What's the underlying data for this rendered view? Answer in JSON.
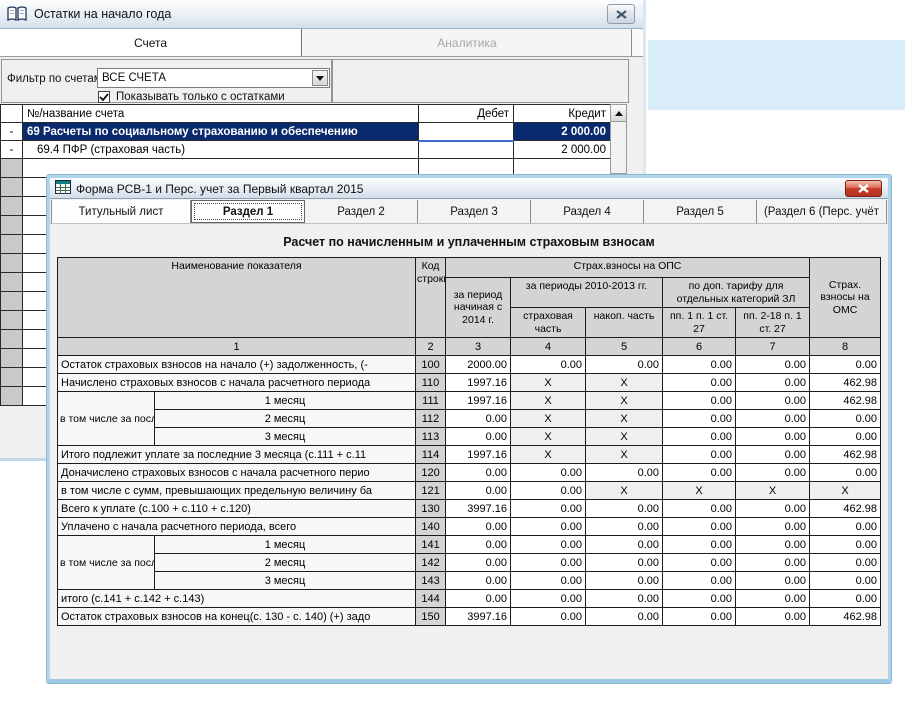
{
  "colors": {
    "selection_navy": "#0a2a6e",
    "window_border_blue": "#aed7ef",
    "close_button_red": "#c53a28",
    "band_blue": "#d9edf8",
    "table_header_gray": "#d4d4d4"
  },
  "window_balances": {
    "title": "Остатки на начало года",
    "icon": "open-book-icon",
    "close": "close-icon",
    "tabs": [
      {
        "label": "Счета",
        "active": true
      },
      {
        "label": "Аналитика",
        "active": false
      }
    ],
    "filter_label": "Фильтр по счетам",
    "filter_value": "ВСЕ СЧЕТА",
    "checkbox_label": "Показывать только с остатками",
    "checkbox_checked": true,
    "table": {
      "columns": [
        "№/название счета",
        "Дебет",
        "Кредит"
      ],
      "rows": [
        {
          "expander": "-",
          "name": "69 Расчеты по социальному страхованию и обеспечению",
          "debit": "",
          "credit": "2 000.00",
          "selected": true,
          "indent": false
        },
        {
          "expander": "-",
          "name": "69.4  ПФР (страховая часть)",
          "debit": "",
          "credit": "2 000.00",
          "selected": false,
          "indent": true
        }
      ],
      "empty_row_count": 13
    }
  },
  "window_rsv": {
    "title": "Форма РСВ-1 и Перс. учет за Первый квартал 2015",
    "icon": "spreadsheet-icon",
    "close": "close-icon",
    "tabs": [
      {
        "label": "Титульный лист",
        "active": false
      },
      {
        "label": "Раздел 1",
        "active": true
      },
      {
        "label": "Раздел 2",
        "active": false
      },
      {
        "label": "Раздел 3",
        "active": false
      },
      {
        "label": "Раздел 4",
        "active": false
      },
      {
        "label": "Раздел 5",
        "active": false
      },
      {
        "label": "(Раздел 6 (Перс. учёт",
        "active": false
      }
    ],
    "form_title": "Расчет по начисленным и уплаченным страховым взносам",
    "table": {
      "header": {
        "name": "Наименование показателя",
        "code": "Код строки",
        "ops_group": "Страх.взносы на ОПС",
        "period_2014": "за период начиная с 2014 г.",
        "periods_2010_2013": "за периоды 2010-2013 гг.",
        "insurance_part": "страховая часть",
        "accum_part": "накоп. часть",
        "add_tariff": "по доп. тарифу для отдельных категорий ЗЛ",
        "pp1": "пп. 1 п. 1 ст. 27",
        "pp2_18": "пп. 2-18 п. 1 ст. 27",
        "oms": "Страх. взносы на ОМС"
      },
      "numbering": [
        "1",
        "2",
        "3",
        "4",
        "5",
        "6",
        "7",
        "8"
      ],
      "rows": [
        {
          "label": "Остаток страховых взносов на начало (+) задолженность, (-",
          "code": "100",
          "values": [
            "2000.00",
            "0.00",
            "0.00",
            "0.00",
            "0.00",
            "0.00"
          ]
        },
        {
          "label": "Начислено страховых взносов с начала расчетного периода",
          "code": "110",
          "values": [
            "1997.16",
            "X",
            "X",
            "0.00",
            "0.00",
            "462.98"
          ]
        },
        {
          "group": "в том числе за последние три месяца отчетного периода",
          "sub": "1 месяц",
          "code": "111",
          "values": [
            "1997.16",
            "X",
            "X",
            "0.00",
            "0.00",
            "462.98"
          ]
        },
        {
          "sub": "2 месяц",
          "code": "112",
          "values": [
            "0.00",
            "X",
            "X",
            "0.00",
            "0.00",
            "0.00"
          ]
        },
        {
          "sub": "3 месяц",
          "code": "113",
          "values": [
            "0.00",
            "X",
            "X",
            "0.00",
            "0.00",
            "0.00"
          ]
        },
        {
          "label": "Итого подлежит уплате за последние 3 месяца (с.111 + с.11",
          "code": "114",
          "values": [
            "1997.16",
            "X",
            "X",
            "0.00",
            "0.00",
            "462.98"
          ]
        },
        {
          "label": "Доначислено страховых взносов с начала расчетного перио",
          "code": "120",
          "values": [
            "0.00",
            "0.00",
            "0.00",
            "0.00",
            "0.00",
            "0.00"
          ]
        },
        {
          "label": "в том числе с сумм, превышающих предельную величину ба",
          "code": "121",
          "values": [
            "0.00",
            "0.00",
            "X",
            "X",
            "X",
            "X"
          ]
        },
        {
          "label": "Всего к уплате (с.100 + с.110 + с.120)",
          "code": "130",
          "values": [
            "3997.16",
            "0.00",
            "0.00",
            "0.00",
            "0.00",
            "462.98"
          ]
        },
        {
          "label": "Уплачено с начала расчетного периода, всего",
          "code": "140",
          "values": [
            "0.00",
            "0.00",
            "0.00",
            "0.00",
            "0.00",
            "0.00"
          ]
        },
        {
          "group": "в том числе за последние три месяца отчетного периода",
          "sub": "1 месяц",
          "code": "141",
          "values": [
            "0.00",
            "0.00",
            "0.00",
            "0.00",
            "0.00",
            "0.00"
          ]
        },
        {
          "sub": "2 месяц",
          "code": "142",
          "values": [
            "0.00",
            "0.00",
            "0.00",
            "0.00",
            "0.00",
            "0.00"
          ]
        },
        {
          "sub": "3 месяц",
          "code": "143",
          "values": [
            "0.00",
            "0.00",
            "0.00",
            "0.00",
            "0.00",
            "0.00"
          ]
        },
        {
          "label": "итого (с.141 + с.142 + с.143)",
          "code": "144",
          "values": [
            "0.00",
            "0.00",
            "0.00",
            "0.00",
            "0.00",
            "0.00"
          ]
        },
        {
          "label": "Остаток страховых взносов на конец(с. 130 - с. 140) (+) задо",
          "code": "150",
          "values": [
            "3997.16",
            "0.00",
            "0.00",
            "0.00",
            "0.00",
            "462.98"
          ]
        }
      ]
    }
  }
}
